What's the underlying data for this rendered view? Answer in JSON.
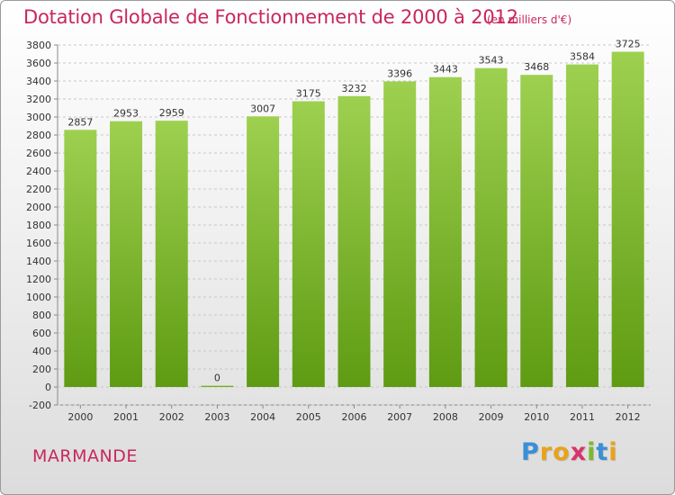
{
  "title": "Dotation Globale de Fonctionnement de 2000 à 2012",
  "subtitle": "(en milliers d'€)",
  "commune": "MARMANDE",
  "brand": {
    "letters": [
      "P",
      "r",
      "o",
      "x",
      "i",
      "t",
      "i"
    ],
    "colors": [
      "#3a8fd6",
      "#e8a21c",
      "#e8a21c",
      "#d9336b",
      "#7cb82f",
      "#3a8fd6",
      "#e8a21c"
    ]
  },
  "colors": {
    "title": "#c8275c",
    "bar_top": "#9ed050",
    "bar_bottom": "#5e9b12",
    "grid": "#c8c8c8"
  },
  "chart_data": {
    "type": "bar",
    "categories": [
      "2000",
      "2001",
      "2002",
      "2003",
      "2004",
      "2005",
      "2006",
      "2007",
      "2008",
      "2009",
      "2010",
      "2011",
      "2012"
    ],
    "values": [
      2857,
      2953,
      2959,
      0,
      3007,
      3175,
      3232,
      3396,
      3443,
      3543,
      3468,
      3584,
      3725
    ],
    "data_labels": [
      "2857",
      "2953",
      "2959",
      "0",
      "3007",
      "3175",
      "3232",
      "3396",
      "3443",
      "3543",
      "3468",
      "3584",
      "3725"
    ],
    "yticks": [
      -200,
      0,
      200,
      400,
      600,
      800,
      1000,
      1200,
      1400,
      1600,
      1800,
      2000,
      2200,
      2400,
      2600,
      2800,
      3000,
      3200,
      3400,
      3600,
      3800
    ],
    "ylim": [
      -200,
      3800
    ],
    "grid": "horizontal dashed",
    "legend": "none"
  }
}
